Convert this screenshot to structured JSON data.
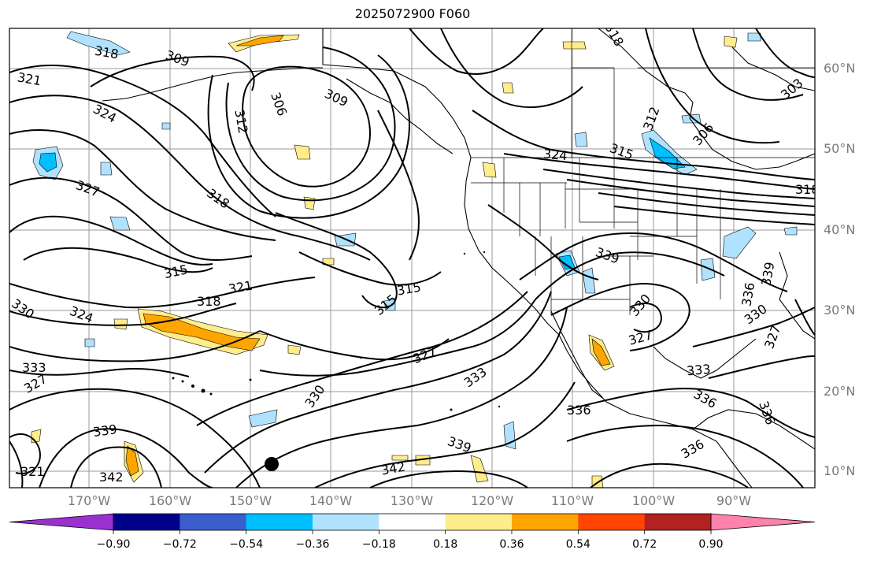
{
  "title": "2025072900 F060",
  "latitude_labels": [
    "60°N",
    "50°N",
    "40°N",
    "30°N",
    "20°N",
    "10°N"
  ],
  "longitude_labels": [
    "170°W",
    "160°W",
    "150°W",
    "140°W",
    "130°W",
    "120°W",
    "110°W",
    "100°W",
    "90°W"
  ],
  "colorbar": {
    "colors": [
      "#9b30d0",
      "#00008b",
      "#3a5fcd",
      "#00bfff",
      "#b0e2ff",
      "#ffffff",
      "#ffec8b",
      "#ffa500",
      "#ff4500",
      "#b22222",
      "#ff82ab"
    ],
    "tick_labels": [
      "−0.90",
      "−0.72",
      "−0.54",
      "−0.36",
      "−0.18",
      "0.18",
      "0.36",
      "0.54",
      "0.72",
      "0.90"
    ]
  },
  "contour_labels": [
    "309",
    "318",
    "321",
    "324",
    "327",
    "318",
    "315",
    "321",
    "318",
    "324",
    "330",
    "333",
    "327",
    "339",
    "342",
    "321",
    "306",
    "309",
    "312",
    "318",
    "315",
    "315",
    "327",
    "333",
    "330",
    "336",
    "339",
    "342",
    "339",
    "324",
    "315",
    "312",
    "306",
    "303",
    "318",
    "330",
    "327",
    "333",
    "336",
    "336",
    "336",
    "330",
    "327",
    "339",
    "336"
  ],
  "map_features": [
    "coastlines",
    "country-borders",
    "state-borders",
    "graticule",
    "theta-e-contours",
    "filled-anomaly-shading",
    "marker-dot"
  ]
}
